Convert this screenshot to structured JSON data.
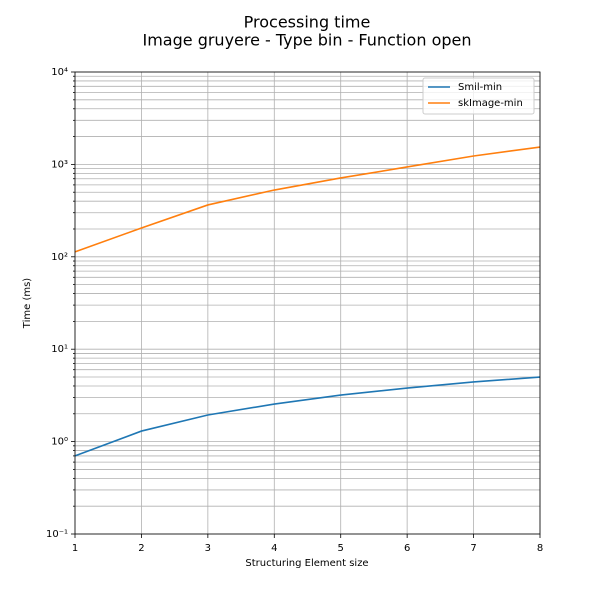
{
  "chart_data": {
    "type": "line",
    "title": "Processing time",
    "subtitle": "Image gruyere - Type bin - Function open",
    "x_label": "Structuring Element size",
    "y_label": "Time (ms)",
    "x": [
      1,
      2,
      3,
      4,
      5,
      6,
      7,
      8
    ],
    "series": [
      {
        "name": "Smil-min",
        "color": "#1f77b4",
        "values": [
          0.7,
          1.3,
          1.94,
          2.55,
          3.19,
          3.8,
          4.42,
          5.0
        ]
      },
      {
        "name": "skImage-min",
        "color": "#ff7f0e",
        "values": [
          113,
          205,
          364,
          528,
          713,
          938,
          1233,
          1542
        ]
      }
    ],
    "xlim": [
      1,
      8
    ],
    "xticks": [
      1,
      2,
      3,
      4,
      5,
      6,
      7,
      8
    ],
    "ylim": [
      0.1,
      10000
    ],
    "yticks": [
      {
        "value": 0.1,
        "label": "10⁻¹"
      },
      {
        "value": 1,
        "label": "10⁰"
      },
      {
        "value": 10,
        "label": "10¹"
      },
      {
        "value": 100,
        "label": "10²"
      },
      {
        "value": 1000,
        "label": "10³"
      },
      {
        "value": 10000,
        "label": "10⁴"
      }
    ],
    "yminorticks": [
      0.2,
      0.3,
      0.4,
      0.5,
      0.6,
      0.7,
      0.8,
      0.9,
      2,
      3,
      4,
      5,
      6,
      7,
      8,
      9,
      20,
      30,
      40,
      50,
      60,
      70,
      80,
      90,
      200,
      300,
      400,
      500,
      600,
      700,
      800,
      900,
      2000,
      3000,
      4000,
      5000,
      6000,
      7000,
      8000,
      9000
    ],
    "y_scale": "log",
    "grid": true,
    "legend": "upper right"
  }
}
